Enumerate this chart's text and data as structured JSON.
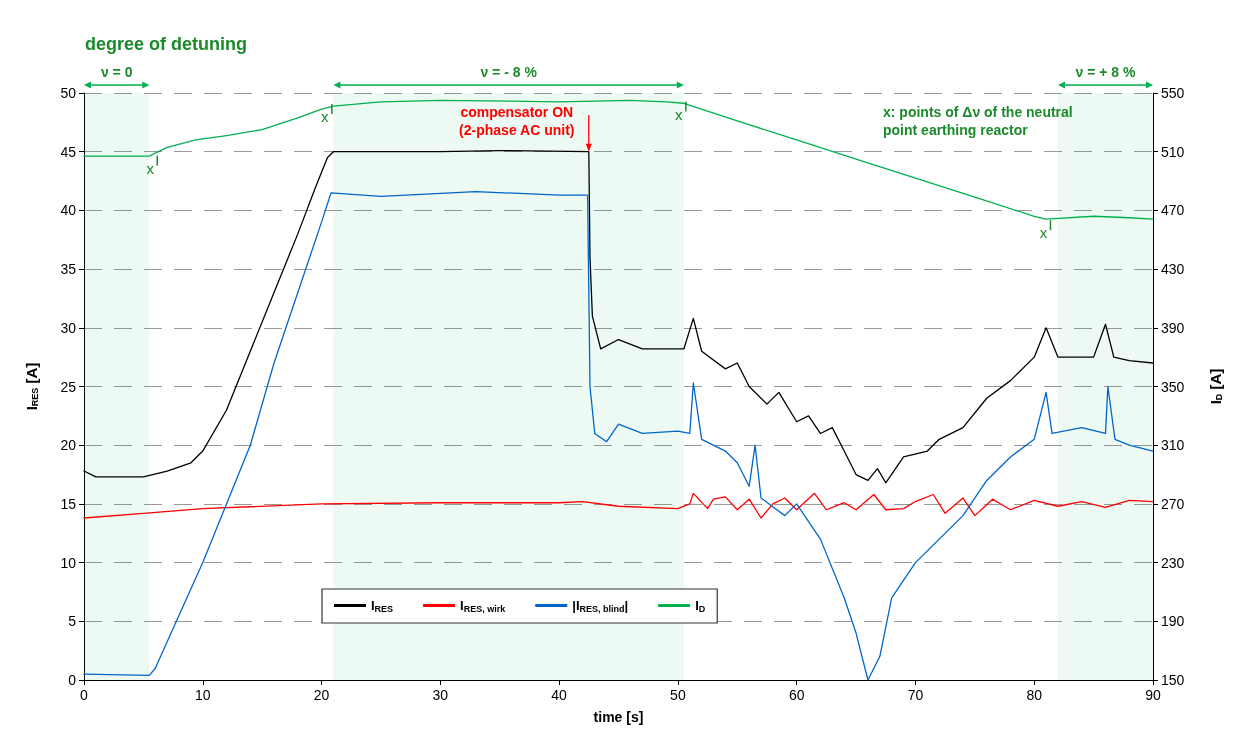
{
  "chart_data": {
    "type": "line",
    "title": "degree of detuning",
    "xlabel": "time [s]",
    "ylabel": "I$_{RES}$ [A]",
    "y2label": "I$_{D}$ [A]",
    "xlim": [
      0,
      90
    ],
    "xticks": [
      0,
      10,
      20,
      30,
      40,
      50,
      60,
      70,
      80,
      90
    ],
    "ylim": [
      0,
      50
    ],
    "yticks": [
      0,
      5,
      10,
      15,
      20,
      25,
      30,
      35,
      40,
      45,
      50
    ],
    "y2lim": [
      150,
      550
    ],
    "y2ticks": [
      150,
      190,
      230,
      270,
      310,
      350,
      390,
      430,
      470,
      510,
      550
    ],
    "grid": "y",
    "legend": "bottom",
    "marker": "none",
    "line_style": "solid",
    "series": [
      {
        "name": "I$_{RES}$",
        "color": "#000000",
        "x": [
          0,
          1,
          5,
          7,
          9,
          10,
          12,
          14,
          16,
          18,
          19.5,
          20.5,
          21,
          30,
          35,
          42.5,
          42.6,
          42.8,
          43.5,
          45,
          47,
          50.5,
          51.3,
          52,
          54,
          55,
          56,
          57.5,
          58.5,
          60,
          61,
          62,
          63,
          64,
          65,
          66,
          66.8,
          67.5,
          69,
          71,
          72,
          74,
          76,
          78,
          80,
          81,
          82,
          85,
          86,
          86.7,
          88,
          90
        ],
        "values": [
          17.8,
          17.3,
          17.3,
          17.8,
          18.5,
          19.5,
          23,
          28,
          33,
          38,
          42,
          44.5,
          45,
          45,
          45.1,
          45,
          36,
          31,
          28.2,
          29,
          28.2,
          28.2,
          30.8,
          28,
          26.5,
          27,
          25,
          23.5,
          24.5,
          22,
          22.5,
          21,
          21.5,
          19.5,
          17.5,
          17,
          18,
          16.8,
          19,
          19.5,
          20.5,
          21.5,
          24,
          25.5,
          27.5,
          30,
          27.5,
          27.5,
          30.3,
          27.5,
          27.2,
          27
        ]
      },
      {
        "name": "I$_{RES, wirk}$",
        "color": "#ff0000",
        "x": [
          0,
          5,
          10,
          20,
          30,
          40,
          42,
          45,
          50,
          51,
          51.3,
          52.5,
          53,
          54,
          55,
          56,
          57,
          58,
          59,
          60,
          61.5,
          62.5,
          64,
          65,
          66.5,
          67.5,
          69,
          70,
          71.5,
          72.5,
          74,
          75,
          76.5,
          78,
          80,
          82,
          84,
          86,
          88,
          90
        ],
        "values": [
          13.8,
          14.2,
          14.6,
          15,
          15.1,
          15.1,
          15.2,
          14.8,
          14.6,
          15,
          15.9,
          14.6,
          15.4,
          15.6,
          14.5,
          15.4,
          13.8,
          15,
          15.5,
          14.5,
          15.9,
          14.5,
          15.1,
          14.5,
          15.8,
          14.5,
          14.6,
          15.2,
          15.8,
          14.2,
          15.5,
          14,
          15.4,
          14.5,
          15.3,
          14.8,
          15.2,
          14.7,
          15.3,
          15.2
        ]
      },
      {
        "name": "|I$_{RES, blind}$|",
        "color": "#0066cc",
        "x": [
          0,
          5.5,
          6,
          10,
          12,
          14,
          16,
          18,
          20,
          20.8,
          25,
          33,
          40,
          42.4,
          42.6,
          43,
          44,
          45,
          47,
          50,
          51,
          51.3,
          52,
          54,
          55,
          56,
          56.5,
          57,
          59,
          60,
          62,
          64,
          65,
          66,
          67,
          68,
          70,
          72,
          74,
          76,
          78,
          80,
          81,
          81.5,
          84,
          86,
          86.2,
          86.8,
          88,
          90
        ],
        "values": [
          0.5,
          0.4,
          1,
          10,
          15,
          20,
          27,
          33,
          39,
          41.5,
          41.2,
          41.6,
          41.3,
          41.3,
          25,
          21,
          20.3,
          21.8,
          21,
          21.2,
          21,
          25.3,
          20.5,
          19.5,
          18.5,
          16.5,
          20,
          15.5,
          14,
          15,
          12,
          7,
          4,
          0,
          2,
          7,
          10,
          12,
          14,
          17,
          19,
          20.5,
          24.5,
          21,
          21.5,
          21,
          25,
          20.5,
          20,
          19.5
        ]
      },
      {
        "name": "I$_{D}$",
        "color": "#00b050",
        "axis": "y2",
        "x": [
          0,
          5.5,
          6,
          7,
          9.4,
          12,
          15,
          18,
          20,
          21,
          25,
          30,
          40,
          46,
          49,
          50.5,
          55,
          60,
          65,
          70,
          75,
          80,
          81,
          85,
          88,
          90
        ],
        "values": [
          507,
          507,
          509,
          513,
          518,
          521,
          525,
          533,
          539,
          541,
          544,
          545,
          544,
          545,
          544,
          543,
          531,
          518,
          505,
          492,
          479,
          466,
          464,
          466,
          465,
          464
        ]
      }
    ],
    "bands": [
      {
        "axis": "x",
        "from": 0,
        "to": 5.5,
        "label": "ν = 0",
        "color": "#00b050"
      },
      {
        "axis": "x",
        "from": 21,
        "to": 50.5,
        "label": "ν = - 8 %",
        "color": "#00b050"
      },
      {
        "axis": "x",
        "from": 82,
        "to": 90,
        "label": "ν = + 8 %",
        "color": "#00b050"
      }
    ],
    "annotations": [
      {
        "text": "compensator ON\n(2-phase AC unit)",
        "x": 42.5,
        "y": 45
      },
      {
        "text": "x",
        "x": 6,
        "y": 44.5
      },
      {
        "text": "x",
        "x": 20.7,
        "y": 48.9
      },
      {
        "text": "x",
        "x": 50.5,
        "y": 49.1
      },
      {
        "text": "x",
        "x": 81.2,
        "y": 39
      },
      "x: points of Δν  of the neutral\npoint earthing reactor"
    ]
  }
}
